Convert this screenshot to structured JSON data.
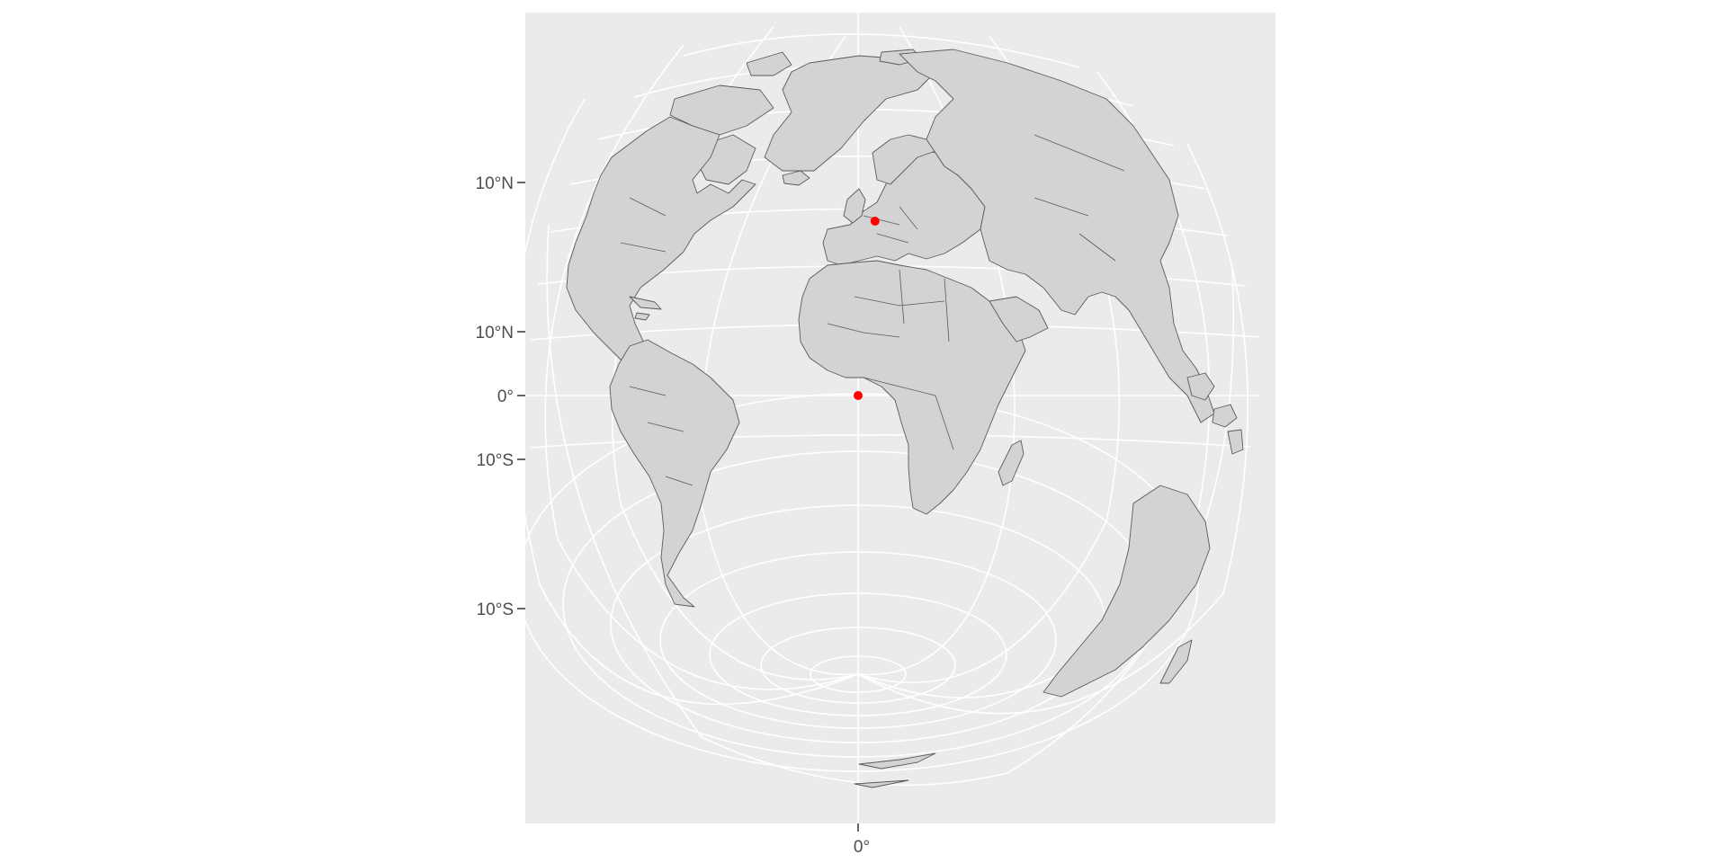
{
  "map": {
    "projection": "orthographic",
    "colors": {
      "panel_background": "#ebebeb",
      "graticule": "#ffffff",
      "land_fill": "#d3d3d3",
      "land_outline": "#5a5a5a",
      "point": "#ff0000"
    },
    "y_axis_labels": [
      "10°N",
      "10°N",
      "0°",
      "10°S",
      "10°S"
    ],
    "x_axis_labels": [
      "0°"
    ],
    "points": [
      {
        "id": "point-equator",
        "lon": 0,
        "lat": 0
      },
      {
        "id": "point-europe",
        "lon": 4.9,
        "lat": 52.4
      }
    ]
  }
}
